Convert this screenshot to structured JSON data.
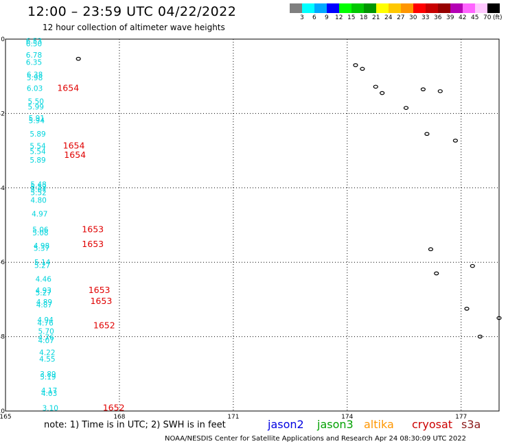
{
  "title": "12:00 – 23:59 UTC 04/22/2022",
  "subtitle": "12 hour collection of altimeter wave heights",
  "colorbar": {
    "unit": "(ft)",
    "colors": [
      "#7f7f7f",
      "#00ffff",
      "#00a8ff",
      "#0000ff",
      "#00ff00",
      "#00c800",
      "#009600",
      "#ffff00",
      "#ffc800",
      "#ff9600",
      "#ff0000",
      "#c80000",
      "#960000",
      "#b400b4",
      "#ff64ff",
      "#ffc8ff",
      "#000000"
    ],
    "labels": [
      "3",
      "6",
      "9",
      "12",
      "15",
      "18",
      "21",
      "24",
      "27",
      "30",
      "33",
      "36",
      "39",
      "42",
      "45",
      "70"
    ]
  },
  "axes": {
    "x_min": 165,
    "x_max": 178,
    "y_min": -10,
    "y_max": 0,
    "x_tick_labels": [
      "165",
      "168",
      "171",
      "174",
      "177"
    ],
    "y_tick_labels": [
      "0",
      "-2",
      "-4",
      "-6",
      "-8",
      "-10"
    ]
  },
  "measurements": [
    {
      "value": "6.53",
      "lon": 165.75,
      "lat": -0.05
    },
    {
      "value": "6.50",
      "lon": 165.75,
      "lat": -0.12
    },
    {
      "value": "6.78",
      "lon": 165.75,
      "lat": -0.42
    },
    {
      "value": "6.35",
      "lon": 165.75,
      "lat": -0.62
    },
    {
      "value": "6.38",
      "lon": 165.77,
      "lat": -0.95
    },
    {
      "value": "5.98",
      "lon": 165.77,
      "lat": -1.03
    },
    {
      "value": "6.03",
      "lon": 165.77,
      "lat": -1.32
    },
    {
      "value": "5.50",
      "lon": 165.8,
      "lat": -1.67
    },
    {
      "value": "5.99",
      "lon": 165.8,
      "lat": -1.82
    },
    {
      "value": "5.91",
      "lon": 165.82,
      "lat": -2.12
    },
    {
      "value": "5.94",
      "lon": 165.82,
      "lat": -2.19
    },
    {
      "value": "5.89",
      "lon": 165.85,
      "lat": -2.55
    },
    {
      "value": "5.54",
      "lon": 165.85,
      "lat": -2.87
    },
    {
      "value": "5.54",
      "lon": 165.85,
      "lat": -3.02
    },
    {
      "value": "5.89",
      "lon": 165.85,
      "lat": -3.25
    },
    {
      "value": "5.48",
      "lon": 165.87,
      "lat": -3.9
    },
    {
      "value": "5.52",
      "lon": 165.87,
      "lat": -3.97
    },
    {
      "value": "5.67",
      "lon": 165.87,
      "lat": -4.04
    },
    {
      "value": "5.52",
      "lon": 165.87,
      "lat": -4.12
    },
    {
      "value": "4.80",
      "lon": 165.87,
      "lat": -4.33
    },
    {
      "value": "4.97",
      "lon": 165.9,
      "lat": -4.7
    },
    {
      "value": "5.06",
      "lon": 165.92,
      "lat": -5.12
    },
    {
      "value": "5.08",
      "lon": 165.92,
      "lat": -5.2
    },
    {
      "value": "4.98",
      "lon": 165.95,
      "lat": -5.55
    },
    {
      "value": "5.37",
      "lon": 165.95,
      "lat": -5.62
    },
    {
      "value": "5.14",
      "lon": 165.97,
      "lat": -6.0
    },
    {
      "value": "5.27",
      "lon": 165.97,
      "lat": -6.08
    },
    {
      "value": "4.46",
      "lon": 166.0,
      "lat": -6.45
    },
    {
      "value": "4.93",
      "lon": 166.0,
      "lat": -6.75
    },
    {
      "value": "5.27",
      "lon": 166.0,
      "lat": -6.82
    },
    {
      "value": "4.89",
      "lon": 166.02,
      "lat": -7.07
    },
    {
      "value": "4.87",
      "lon": 166.02,
      "lat": -7.14
    },
    {
      "value": "4.94",
      "lon": 166.05,
      "lat": -7.55
    },
    {
      "value": "4.76",
      "lon": 166.05,
      "lat": -7.63
    },
    {
      "value": "5.70",
      "lon": 166.07,
      "lat": -7.85
    },
    {
      "value": "4.76",
      "lon": 166.07,
      "lat": -8.02
    },
    {
      "value": "4.07",
      "lon": 166.07,
      "lat": -8.1
    },
    {
      "value": "4.22",
      "lon": 166.1,
      "lat": -8.42
    },
    {
      "value": "4.55",
      "lon": 166.1,
      "lat": -8.6
    },
    {
      "value": "3.89",
      "lon": 166.12,
      "lat": -9.0
    },
    {
      "value": "5.19",
      "lon": 166.12,
      "lat": -9.08
    },
    {
      "value": "4.17",
      "lon": 166.15,
      "lat": -9.45
    },
    {
      "value": "4.03",
      "lon": 166.15,
      "lat": -9.52
    },
    {
      "value": "3.10",
      "lon": 166.18,
      "lat": -9.92
    }
  ],
  "pass_labels": [
    {
      "text": "1654",
      "lon": 166.65,
      "lat": -1.32
    },
    {
      "text": "1654",
      "lon": 166.8,
      "lat": -2.87
    },
    {
      "text": "1654",
      "lon": 166.83,
      "lat": -3.12
    },
    {
      "text": "1653",
      "lon": 167.3,
      "lat": -5.12
    },
    {
      "text": "1653",
      "lon": 167.3,
      "lat": -5.52
    },
    {
      "text": "1653",
      "lon": 167.47,
      "lat": -6.75
    },
    {
      "text": "1653",
      "lon": 167.52,
      "lat": -7.05
    },
    {
      "text": "1652",
      "lon": 167.6,
      "lat": -7.7
    },
    {
      "text": "1652",
      "lon": 167.85,
      "lat": -9.92
    }
  ],
  "islands": [
    {
      "lon": 166.92,
      "lat": -0.53
    },
    {
      "lon": 174.22,
      "lat": -0.7
    },
    {
      "lon": 174.4,
      "lat": -0.8
    },
    {
      "lon": 174.75,
      "lat": -1.28
    },
    {
      "lon": 174.92,
      "lat": -1.45
    },
    {
      "lon": 175.55,
      "lat": -1.85
    },
    {
      "lon": 176.0,
      "lat": -1.35
    },
    {
      "lon": 176.45,
      "lat": -1.4
    },
    {
      "lon": 176.1,
      "lat": -2.55
    },
    {
      "lon": 176.85,
      "lat": -2.73
    },
    {
      "lon": 176.2,
      "lat": -5.65
    },
    {
      "lon": 176.35,
      "lat": -6.3
    },
    {
      "lon": 177.3,
      "lat": -6.1
    },
    {
      "lon": 177.15,
      "lat": -7.25
    },
    {
      "lon": 178.0,
      "lat": -7.5
    },
    {
      "lon": 177.5,
      "lat": -8.0
    }
  ],
  "footer": {
    "note": "note:  1) Time is in UTC;  2) SWH is in feet",
    "satellites": [
      {
        "name": "jason2",
        "color": "#0000e0"
      },
      {
        "name": "jason3",
        "color": "#00a000"
      },
      {
        "name": "altika",
        "color": "#ff9600"
      },
      {
        "name": "cryosat",
        "color": "#cc0000"
      },
      {
        "name": "s3a",
        "color": "#8b1a1a"
      }
    ],
    "credit": "NOAA/NESDIS Center for Satellite Applications and Research    Apr 24 08:30:09 UTC 2022"
  }
}
